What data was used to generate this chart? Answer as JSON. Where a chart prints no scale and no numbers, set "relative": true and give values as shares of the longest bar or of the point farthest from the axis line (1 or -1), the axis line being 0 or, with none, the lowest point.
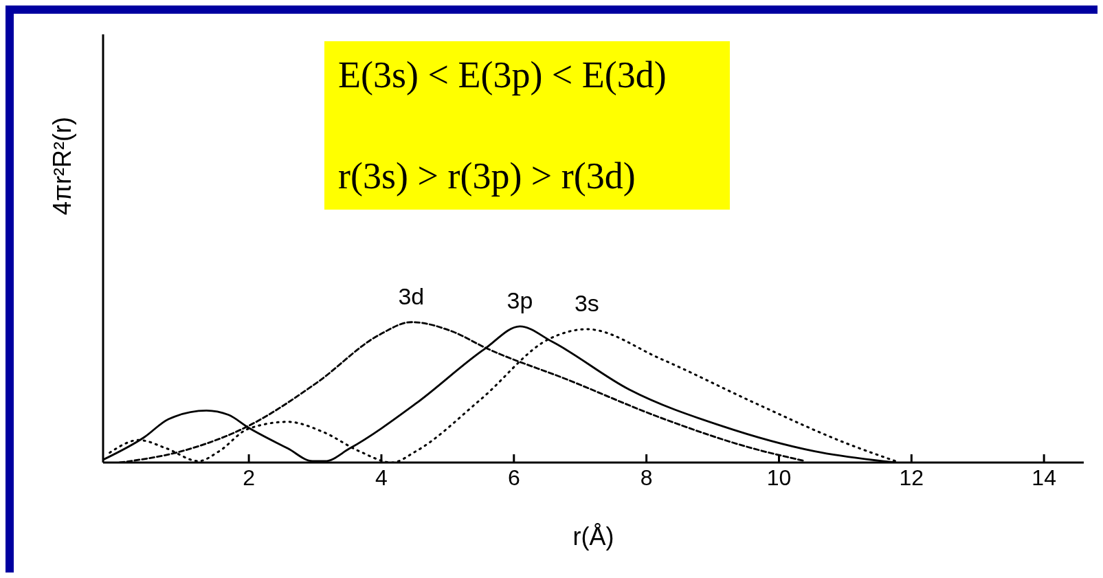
{
  "chart_data": {
    "type": "line",
    "relative": true,
    "xlabel": "r(Å)",
    "ylabel": "4πr²R²(r)",
    "xlim": [
      -0.2,
      14.6
    ],
    "xticks": [
      2,
      4,
      6,
      8,
      10,
      12,
      14
    ],
    "tick_labels": "x",
    "annotations": [
      "E(3s) < E(3p) < E(3d)",
      "r(3s) > r(3p) > r(3d)"
    ],
    "series": [
      {
        "name": "3d",
        "color": "#000000",
        "line_style": "dashed",
        "x": [
          0.05,
          0.98,
          1.99,
          3.03,
          3.97,
          4.45,
          5.09,
          5.56,
          6.81,
          8.21,
          9.61,
          10.4
        ],
        "values": [
          0,
          0.08,
          0.26,
          0.57,
          0.91,
          1,
          0.93,
          0.82,
          0.59,
          0.32,
          0.1,
          0.01
        ]
      },
      {
        "name": "3p",
        "color": "#000000",
        "line_style": "solid",
        "x": [
          -0.2,
          0.42,
          0.79,
          1.36,
          1.69,
          1.99,
          2.59,
          2.96,
          3.15,
          3.52,
          4.52,
          5.56,
          6.09,
          6.58,
          7.74,
          9.14,
          10.54,
          11.76
        ],
        "values": [
          0.02,
          0.18,
          0.31,
          0.37,
          0.34,
          0.25,
          0.1,
          0.01,
          0.01,
          0.1,
          0.42,
          0.81,
          0.97,
          0.86,
          0.52,
          0.26,
          0.08,
          0
        ]
      },
      {
        "name": "3s",
        "color": "#000000",
        "line_style": "dotted",
        "x": [
          -0.1,
          0.34,
          0.76,
          1.24,
          1.55,
          1.99,
          2.59,
          3.11,
          3.67,
          4.16,
          4.52,
          5.5,
          6.53,
          7.1,
          8.21,
          9.61,
          11.0,
          11.76
        ],
        "values": [
          0.07,
          0.16,
          0.1,
          0.01,
          0.08,
          0.24,
          0.29,
          0.22,
          0.08,
          0,
          0.08,
          0.45,
          0.88,
          0.95,
          0.74,
          0.43,
          0.14,
          0.01
        ]
      }
    ]
  }
}
